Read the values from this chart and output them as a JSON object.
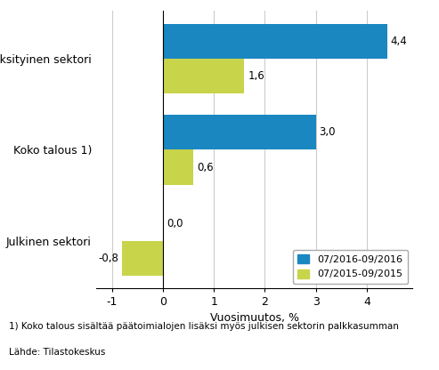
{
  "categories": [
    "Julkinen sektori",
    "Koko talous 1)",
    "Yksityinen sektori"
  ],
  "series": [
    {
      "label": "07/2016-09/2016",
      "values": [
        0.0,
        3.0,
        4.4
      ],
      "color": "#1B87C1"
    },
    {
      "label": "07/2015-09/2015",
      "values": [
        -0.8,
        0.6,
        1.6
      ],
      "color": "#C8D44A"
    }
  ],
  "xlabel": "Vuosimuutos, %",
  "xlim": [
    -1.3,
    4.9
  ],
  "xticks": [
    -1,
    0,
    1,
    2,
    3,
    4
  ],
  "footnote1": "1) Koko talous sisältää päätoimialojen lisäksi myös julkisen sektorin palkkasumman",
  "footnote2": "Lähde: Tilastokeskus",
  "bar_height": 0.38,
  "value_labels": {
    "series0": [
      "0,0",
      "3,0",
      "4,4"
    ],
    "series1": [
      "-0,8",
      "0,6",
      "1,6"
    ]
  }
}
